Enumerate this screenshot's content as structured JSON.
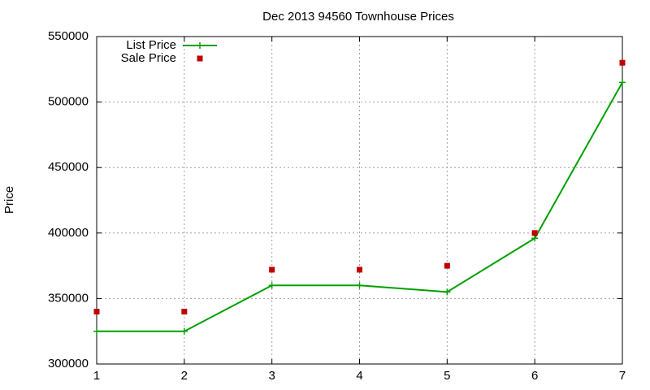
{
  "chart_data": {
    "type": "line",
    "title": "Dec 2013 94560 Townhouse Prices",
    "y_label": "Price",
    "x": [
      1,
      2,
      3,
      4,
      5,
      6,
      7
    ],
    "series": [
      {
        "name": "List Price",
        "color": "#00a000",
        "style": "linespoints",
        "values": [
          325000,
          325000,
          360000,
          360000,
          355000,
          396000,
          515000
        ]
      },
      {
        "name": "Sale Price",
        "color": "#c00000",
        "style": "points",
        "values": [
          340000,
          340000,
          372000,
          372000,
          375000,
          400000,
          530000
        ]
      }
    ],
    "xlim": [
      1,
      7
    ],
    "xticks": [
      1,
      2,
      3,
      4,
      5,
      6,
      7
    ],
    "ylim": [
      300000,
      550000
    ],
    "yticks": [
      300000,
      350000,
      400000,
      450000,
      500000,
      550000
    ],
    "grid": true,
    "legend": "top-left"
  }
}
